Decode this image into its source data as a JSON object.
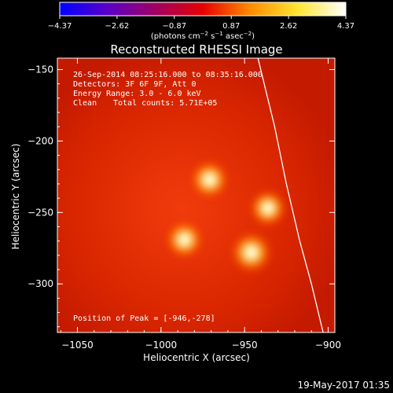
{
  "chart_data": {
    "type": "heatmap",
    "title": "Reconstructed RHESSI Image",
    "xlabel": "Heliocentric X (arcsec)",
    "ylabel": "Heliocentric Y (arcsec)",
    "xlim": [
      -1062,
      -896
    ],
    "ylim": [
      -334,
      -142
    ],
    "x_ticks": [
      -1050,
      -1000,
      -950,
      -900
    ],
    "y_ticks": [
      -150,
      -200,
      -250,
      -300
    ],
    "x_tick_labels": [
      "−1050",
      "−1000",
      "−950",
      "−900"
    ],
    "y_tick_labels": [
      "−150",
      "−200",
      "−250",
      "−300"
    ],
    "colorbar": {
      "min": -4.37,
      "max": 4.37,
      "ticks": [
        -4.37,
        -2.62,
        -0.87,
        0.87,
        2.62,
        4.37
      ],
      "tick_labels": [
        "−4.37",
        "−2.62",
        "−0.87",
        "0.87",
        "2.62",
        "4.37"
      ],
      "unit_parts": [
        "(photons cm",
        "−2",
        " s",
        "−1",
        " asec",
        "−2",
        ")"
      ],
      "colormap": [
        "#0000ff",
        "#5a00c8",
        "#a00064",
        "#e60000",
        "#ff8c00",
        "#ffe632",
        "#ffffff"
      ]
    },
    "annotations": [
      "26-Sep-2014 08:25:16.000 to 08:35:16.000",
      "Detectors: 3F 6F 9F, Att 0",
      "Energy Range: 3.0 - 6.0 keV",
      "Clean",
      "Total counts: 5.71E+05"
    ],
    "peak_label": "Position of Peak = [-946,-278]",
    "sources": [
      {
        "x": -971,
        "y": -227,
        "intensity": 0.92
      },
      {
        "x": -936,
        "y": -247,
        "intensity": 0.88
      },
      {
        "x": -986,
        "y": -269,
        "intensity": 0.9
      },
      {
        "x": -946,
        "y": -278,
        "intensity": 1.0
      }
    ],
    "limb_curve": [
      [
        -942,
        -142
      ],
      [
        -932,
        -190
      ],
      [
        -925,
        -230
      ],
      [
        -917,
        -270
      ],
      [
        -910,
        -300
      ],
      [
        -903,
        -334
      ]
    ]
  },
  "footer": {
    "timestamp": "19-May-2017 01:35"
  }
}
